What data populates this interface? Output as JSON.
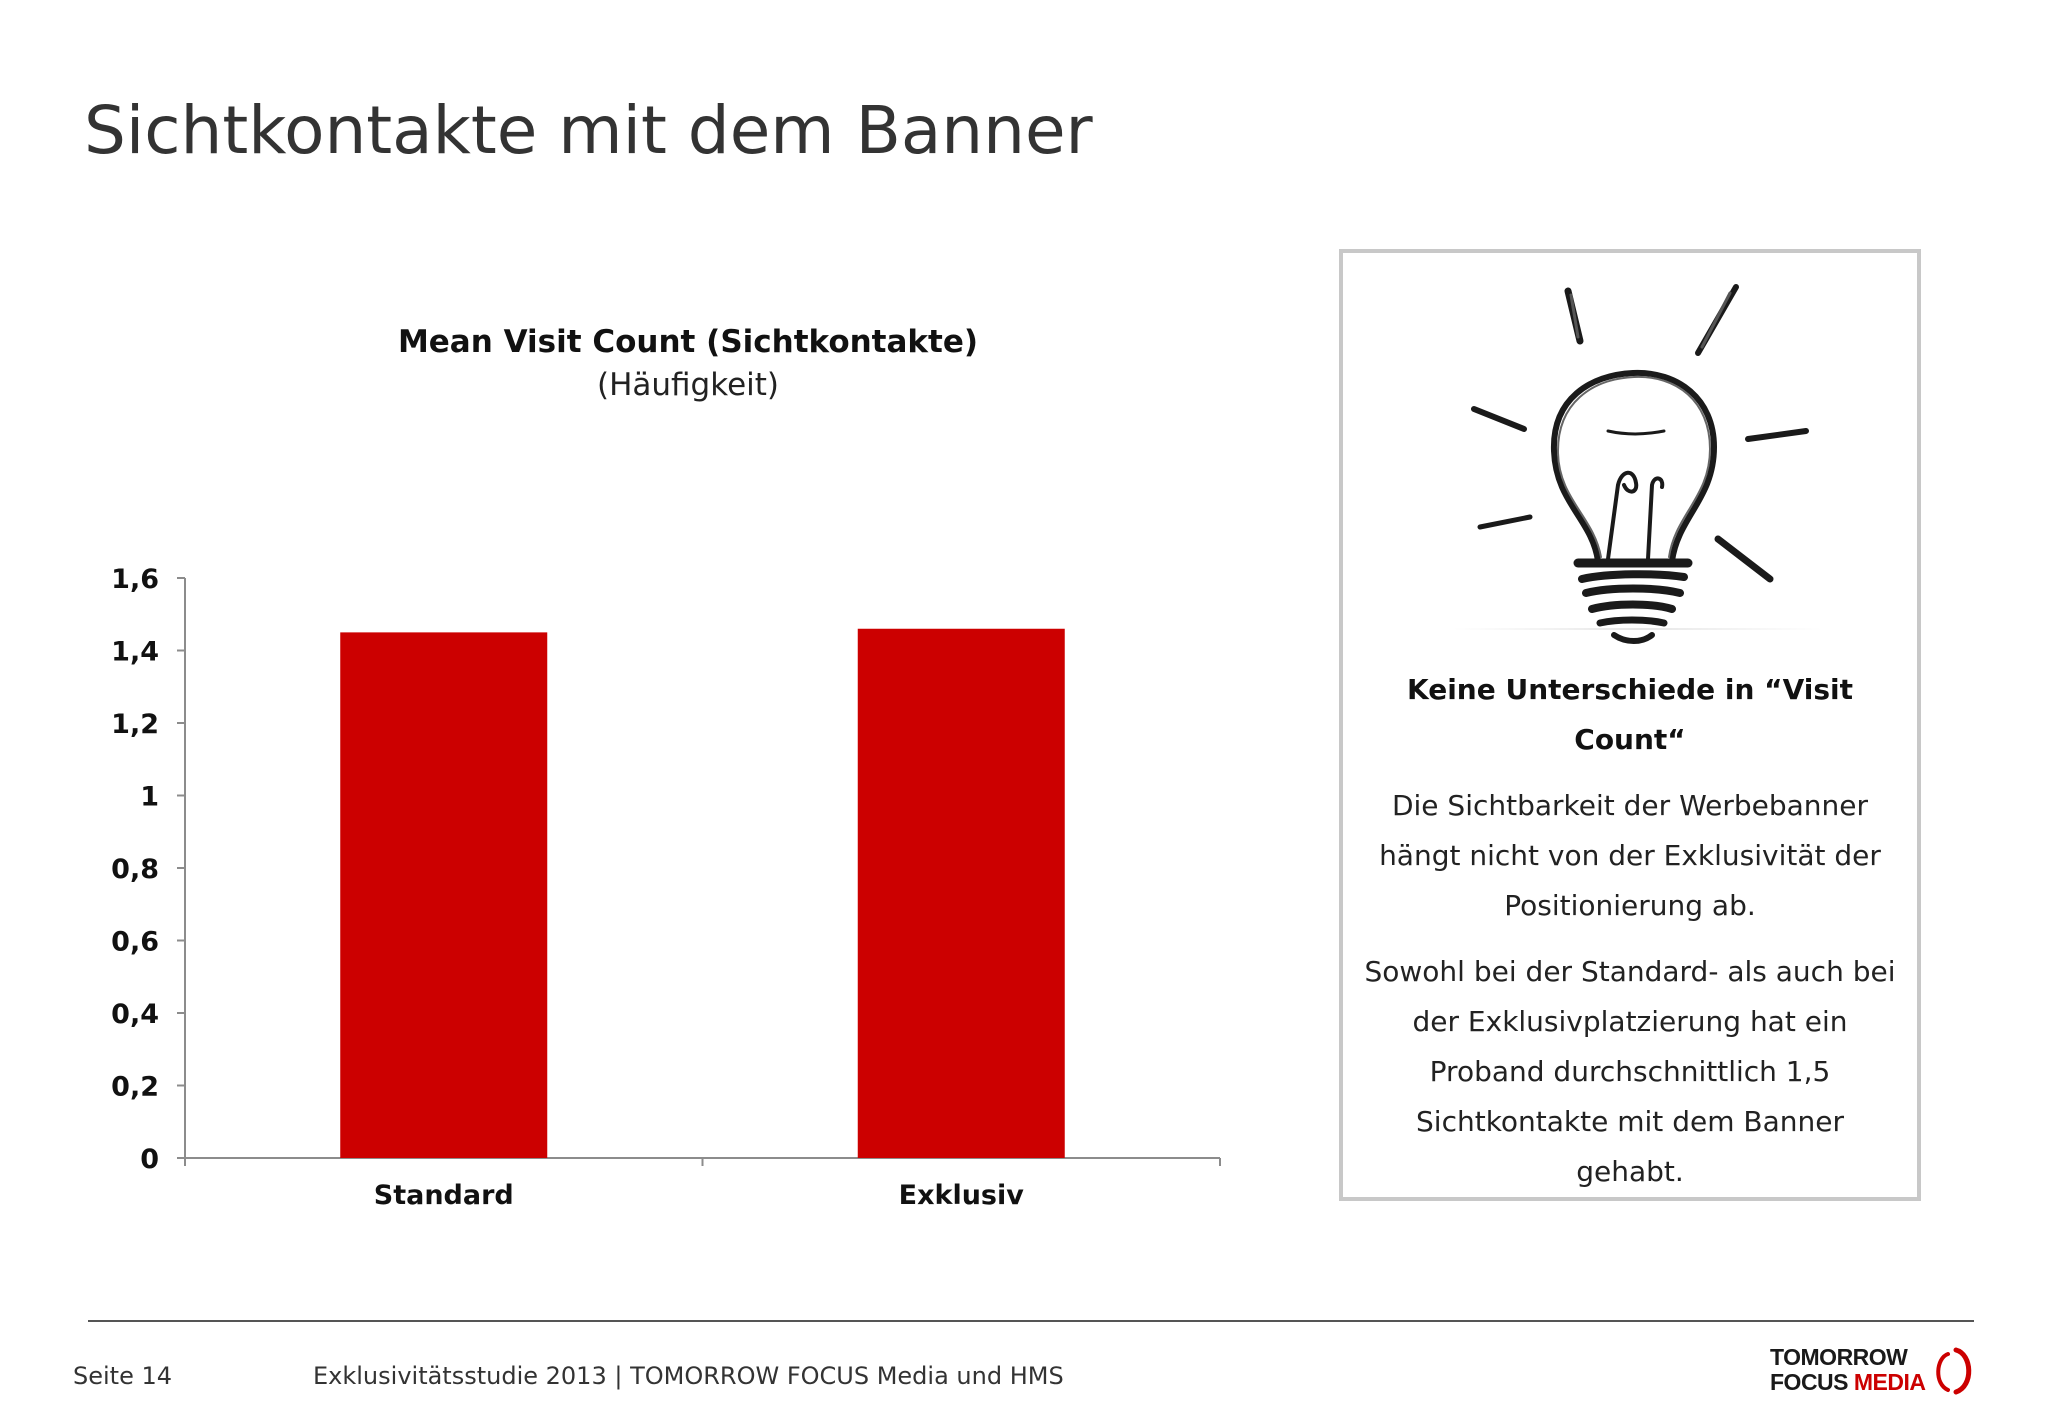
{
  "page": {
    "title": "Sichtkontakte mit dem Banner"
  },
  "chart_data": {
    "type": "bar",
    "title": "Mean Visit Count (Sichtkontakte)",
    "subtitle": "(Häufigkeit)",
    "categories": [
      "Standard",
      "Exklusiv"
    ],
    "values": [
      1.45,
      1.46
    ],
    "ylim": [
      0,
      1.6
    ],
    "yticks": [
      0,
      0.2,
      0.4,
      0.6,
      0.8,
      1,
      1.2,
      1.4,
      1.6
    ],
    "ytick_labels": [
      "0",
      "0,2",
      "0,4",
      "0,6",
      "0,8",
      "1",
      "1,2",
      "1,4",
      "1,6"
    ],
    "grid": false,
    "legend": "none",
    "bar_color": "#cc0000"
  },
  "info_box": {
    "icon": "lightbulb-icon",
    "heading": "Keine Unterschiede in “Visit Count“",
    "paragraphs": [
      "Die Sichtbarkeit der Werbebanner hängt nicht von der Exklusivität der Positionierung ab.",
      "Sowohl bei der Standard- als auch bei der Exklusivplatzierung hat ein Proband durchschnittlich 1,5 Sichtkontakte mit dem Banner gehabt."
    ]
  },
  "footer": {
    "page_label": "Seite 14",
    "study_label": "Exklusivitätsstudie 2013 | TOMORROW FOCUS Media und HMS",
    "logo_line1": "TOMORROW",
    "logo_line2_a": "FOCUS",
    "logo_line2_b": "MEDIA"
  },
  "colors": {
    "accent_red": "#cc0000",
    "text": "#333333",
    "box_border": "#c8c8c8"
  }
}
